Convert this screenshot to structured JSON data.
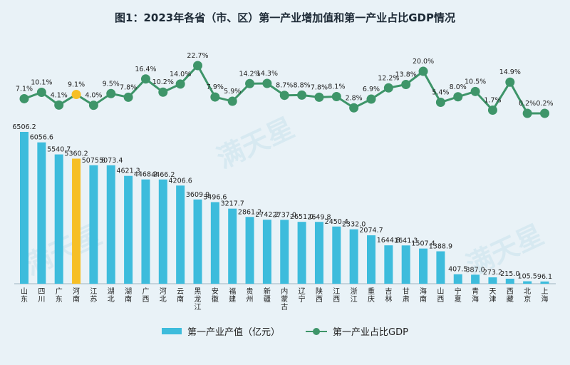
{
  "chart_data": {
    "type": "bar+line",
    "title": "图1：2023年各省（市、区）第一产业增加值和第一产业占比GDP情况",
    "categories": [
      "山东",
      "四川",
      "广东",
      "河南",
      "江苏",
      "湖北",
      "湖南",
      "广西",
      "河北",
      "云南",
      "黑龙江",
      "安徽",
      "福建",
      "贵州",
      "新疆",
      "内蒙古",
      "辽宁",
      "陕西",
      "江西",
      "浙江",
      "重庆",
      "吉林",
      "甘肃",
      "海南",
      "山西",
      "宁夏",
      "青海",
      "天津",
      "西藏",
      "北京",
      "上海"
    ],
    "highlight_category": "河南",
    "series": [
      {
        "name": "第一产业产值（亿元）",
        "type": "bar",
        "values": [
          6506.2,
          6056.6,
          5540.7,
          5360.2,
          5075.8,
          5073.4,
          4621.3,
          4468.2,
          4466.2,
          4206.6,
          3609.9,
          3496.6,
          3217.7,
          2861.2,
          2742.2,
          2737.0,
          2651.0,
          2649.8,
          2450.4,
          2332.0,
          2074.7,
          1644.8,
          1641.3,
          1507.4,
          1388.9,
          407.5,
          387.0,
          273.2,
          215.0,
          105.5,
          96.1
        ],
        "value_labels": [
          "6506.2",
          "6056.6",
          "5540.7",
          "5360.2",
          "5075.8",
          "5073.4",
          "4621.3",
          "4468.2",
          "4466.2",
          "4206.6",
          "3609.9",
          "3496.6",
          "3217.7",
          "2861.2",
          "2742.2",
          "2737.0",
          "2651.0",
          "2649.8",
          "2450.4",
          "2332.0",
          "2074.7",
          "1644.8",
          "1641.3",
          "1507.4",
          "1388.9",
          "407.5",
          "387.0",
          "273.2",
          "215.0",
          "105.5",
          "96.1"
        ]
      },
      {
        "name": "第一产业占比GDP",
        "type": "line",
        "values": [
          7.1,
          10.1,
          4.1,
          9.1,
          4.0,
          9.5,
          7.8,
          16.4,
          10.2,
          14.0,
          22.7,
          7.9,
          5.9,
          14.2,
          14.3,
          8.7,
          8.8,
          7.8,
          8.1,
          2.8,
          6.9,
          12.2,
          13.8,
          20.0,
          5.4,
          8.0,
          10.5,
          1.7,
          14.9,
          0.2,
          0.2
        ],
        "value_labels": [
          "7.1%",
          "10.1%",
          "4.1%",
          "9.1%",
          "4.0%",
          "9.5%",
          "7.8%",
          "16.4%",
          "10.2%",
          "14.0%",
          "22.7%",
          "7.9%",
          "5.9%",
          "14.2%",
          "14.3%",
          "8.7%",
          "8.8%",
          "7.8%",
          "8.1%",
          "2.8%",
          "6.9%",
          "12.2%",
          "13.8%",
          "20.0%",
          "5.4%",
          "8.0%",
          "10.5%",
          "1.7%",
          "14.9%",
          "0.2%",
          "0.2%"
        ]
      }
    ],
    "ylim_bar": [
      0,
      6506.2
    ],
    "ylim_line": [
      0.2,
      22.7
    ],
    "legend_position": "bottom",
    "grid": false
  },
  "colors": {
    "bar": "#3dbcdc",
    "bar_highlight": "#f6bf26",
    "line": "#3e9569",
    "marker_highlight": "#f6bf26",
    "text": "#1d2a36"
  },
  "watermark": "满天星"
}
